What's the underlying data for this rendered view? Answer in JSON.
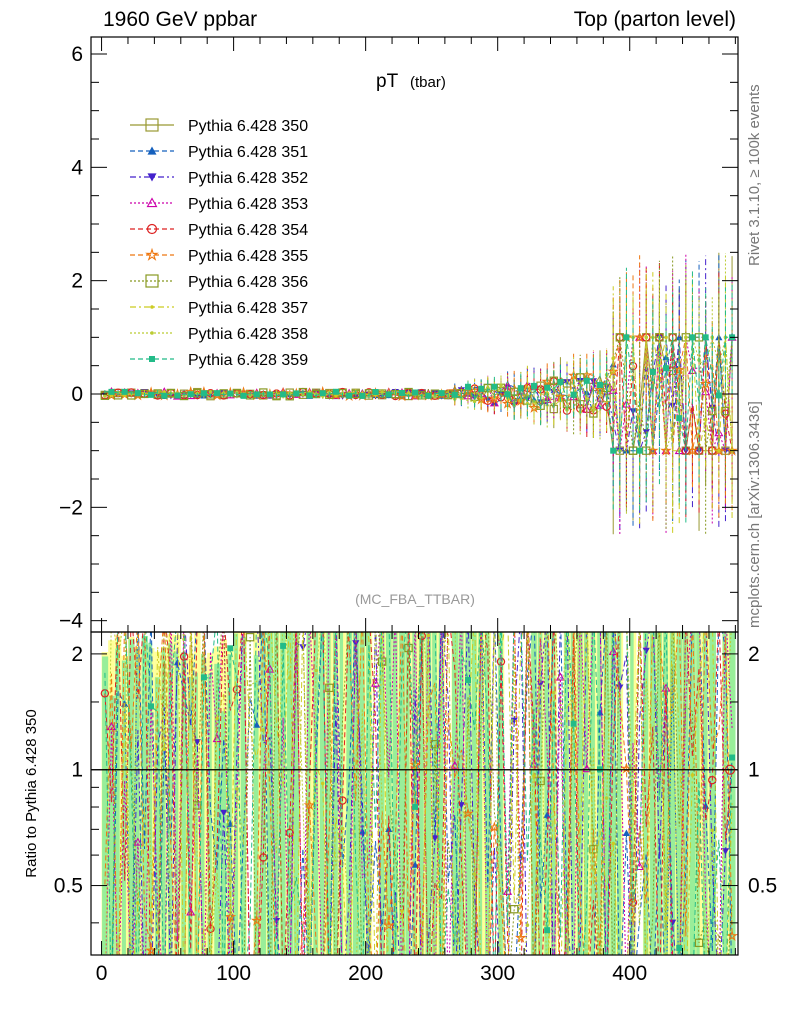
{
  "header": {
    "left": "1960 GeV ppbar",
    "right": "Top (parton level)"
  },
  "side_labels": {
    "rivet": "Rivet 3.1.10, ≥ 100k events",
    "source": "mcplots.cern.ch [arXiv:1306.3436]"
  },
  "chart_data": {
    "type": "line",
    "title": "pT",
    "title_sub": "(tbar)",
    "analysis_tag": "(MC_FBA_TTBAR)",
    "xlabel": "",
    "ylabel": "",
    "ratio_ylabel": "Ratio to Pythia 6.428 350",
    "xlim": [
      -8,
      482
    ],
    "ylim": [
      -4.2,
      6.3
    ],
    "ratio_ylim": [
      0.33,
      2.28
    ],
    "x_ticks": [
      0,
      100,
      200,
      300,
      400
    ],
    "y_ticks": [
      -4,
      -2,
      0,
      2,
      4,
      6
    ],
    "y_tick_labels": [
      "−4",
      "−2",
      "0",
      "2",
      "4",
      "6"
    ],
    "ratio_ticks": [
      0.5,
      1,
      2
    ],
    "ratio_tick_labels": [
      "0.5",
      "1",
      "2"
    ],
    "legend_position": "top-left",
    "series": [
      {
        "name": "Pythia 6.428 350",
        "color": "#999933",
        "dash": "",
        "marker": "square-open"
      },
      {
        "name": "Pythia 6.428 351",
        "color": "#1560bd",
        "dash": "5,3",
        "marker": "triangle-up"
      },
      {
        "name": "Pythia 6.428 352",
        "color": "#4422cc",
        "dash": "6,3,2,3",
        "marker": "triangle-down"
      },
      {
        "name": "Pythia 6.428 353",
        "color": "#cc00aa",
        "dash": "2,2",
        "marker": "triangle-up-open"
      },
      {
        "name": "Pythia 6.428 354",
        "color": "#dd2222",
        "dash": "5,3",
        "marker": "circle-open"
      },
      {
        "name": "Pythia 6.428 355",
        "color": "#ee7711",
        "dash": "5,3",
        "marker": "star"
      },
      {
        "name": "Pythia 6.428 356",
        "color": "#889922",
        "dash": "2,2",
        "marker": "square-open"
      },
      {
        "name": "Pythia 6.428 357",
        "color": "#cccc22",
        "dash": "6,3,2,3",
        "marker": "dot"
      },
      {
        "name": "Pythia 6.428 358",
        "color": "#bbcc33",
        "dash": "2,2",
        "marker": "dot"
      },
      {
        "name": "Pythia 6.428 359",
        "color": "#22bb88",
        "dash": "5,3",
        "marker": "square"
      }
    ]
  }
}
